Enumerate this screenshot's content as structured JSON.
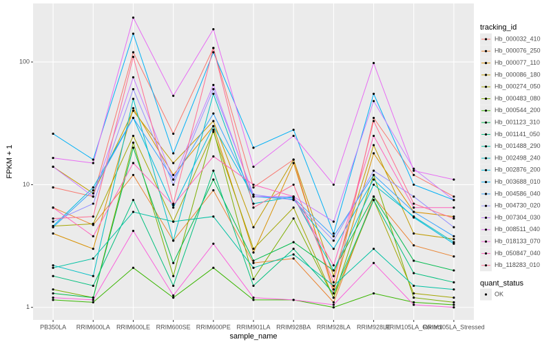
{
  "chart_data": {
    "type": "line",
    "x_label": "sample_name",
    "y_label": "FPKM + 1",
    "log_y": true,
    "grid": true,
    "panel_color": "#ebebeb",
    "point_color": "#000000",
    "legend_title": "tracking_id",
    "ylim": [
      0.79,
      300
    ],
    "yticks": [
      1,
      10,
      100
    ],
    "categories": [
      "PB350LA",
      "RRIM600LA",
      "RRIM600LE",
      "RRIM600SE",
      "RRIM600PE",
      "RRIM901LA",
      "RRIM928BA",
      "RRIM928LA",
      "RRIM928LE",
      "RRIM105LA_Control",
      "RRIM105LA_Stressed"
    ],
    "series": [
      {
        "name": "Hb_000032_410",
        "color": "#F8766D",
        "values": [
          9.5,
          8,
          120,
          26,
          130,
          9.5,
          16,
          1.3,
          35,
          12,
          8
        ]
      },
      {
        "name": "Hb_000076_250",
        "color": "#EA8331",
        "values": [
          6.5,
          4.7,
          12,
          3.5,
          9,
          2.3,
          2.5,
          1.1,
          8,
          3.2,
          2.6
        ]
      },
      {
        "name": "Hb_000077_110",
        "color": "#D89000",
        "values": [
          4,
          3,
          42,
          12,
          30,
          2.8,
          15,
          1.4,
          18,
          6,
          5.5
        ]
      },
      {
        "name": "Hb_000086_180",
        "color": "#C09B00",
        "values": [
          14,
          8.5,
          40,
          15,
          33,
          4.5,
          16,
          1.8,
          21,
          4,
          3.6
        ]
      },
      {
        "name": "Hb_000274_050",
        "color": "#A3A500",
        "values": [
          4.6,
          4.8,
          25,
          5,
          27,
          3,
          6.5,
          1.2,
          7.5,
          1.3,
          1.2
        ]
      },
      {
        "name": "Hb_000483_080",
        "color": "#7CAE00",
        "values": [
          1.4,
          1.2,
          22,
          1.8,
          28,
          1.7,
          5.3,
          1.2,
          12,
          1.2,
          1.1
        ]
      },
      {
        "name": "Hb_000544_200",
        "color": "#39B600",
        "values": [
          1.15,
          1.1,
          2.1,
          1.2,
          2.1,
          1.15,
          1.15,
          1.0,
          1.3,
          1.1,
          1.05
        ]
      },
      {
        "name": "Hb_001123_310",
        "color": "#00BB4E",
        "values": [
          1.3,
          1.2,
          20,
          2.3,
          11,
          2.4,
          3.4,
          2,
          8,
          2.4,
          2
        ]
      },
      {
        "name": "Hb_001141_050",
        "color": "#00BF7D",
        "values": [
          1.8,
          1.5,
          7.5,
          1.5,
          13,
          1.5,
          3,
          1.3,
          7.5,
          1.9,
          1.6
        ]
      },
      {
        "name": "Hb_001488_290",
        "color": "#00C1A3",
        "values": [
          2.1,
          2.5,
          6,
          5,
          5.5,
          2.1,
          2.7,
          1.5,
          3,
          1.5,
          1.4
        ]
      },
      {
        "name": "Hb_002498_240",
        "color": "#00BFC4",
        "values": [
          2.2,
          1.8,
          50,
          3.5,
          55,
          7,
          8,
          2,
          10,
          5.5,
          3.4
        ]
      },
      {
        "name": "Hb_002876_200",
        "color": "#00BAE0",
        "values": [
          4.6,
          9.5,
          35,
          6.5,
          30,
          8,
          7.6,
          3,
          11,
          5.4,
          3.3
        ]
      },
      {
        "name": "Hb_003688_010",
        "color": "#00B0F6",
        "values": [
          26,
          16,
          170,
          18,
          120,
          20,
          28,
          4,
          55,
          10,
          7.5
        ]
      },
      {
        "name": "Hb_004586_040",
        "color": "#35A2FF",
        "values": [
          4.5,
          9,
          35,
          11,
          38,
          8,
          7.8,
          3.8,
          12,
          6,
          3.8
        ]
      },
      {
        "name": "Hb_004730_020",
        "color": "#9590FF",
        "values": [
          5,
          7,
          60,
          10,
          60,
          8.3,
          7.5,
          3.5,
          13,
          8,
          4.5
        ]
      },
      {
        "name": "Hb_007304_030",
        "color": "#C77CFF",
        "values": [
          14,
          8,
          75,
          11,
          65,
          8,
          8,
          5,
          48,
          13.5,
          7.5
        ]
      },
      {
        "name": "Hb_008511_040",
        "color": "#E76BF3",
        "values": [
          16.5,
          15,
          230,
          53,
          185,
          14,
          25,
          10,
          98,
          13,
          11
        ]
      },
      {
        "name": "Hb_018133_070",
        "color": "#FA62DB",
        "values": [
          1.2,
          1.15,
          4.2,
          1.25,
          3.3,
          1.2,
          1.15,
          1.05,
          2.3,
          1.05,
          1.0
        ]
      },
      {
        "name": "Hb_050847_040",
        "color": "#FF62BC",
        "values": [
          6.5,
          3.8,
          15,
          6.8,
          17,
          10,
          8,
          2.2,
          25,
          6.5,
          6.5
        ]
      },
      {
        "name": "Hb_118283_010",
        "color": "#FF6C90",
        "values": [
          5.3,
          5.5,
          110,
          7,
          130,
          6.5,
          10,
          1.6,
          33,
          7,
          5.3
        ]
      }
    ],
    "quant_status": {
      "title": "quant_status",
      "levels": [
        "OK"
      ]
    }
  }
}
